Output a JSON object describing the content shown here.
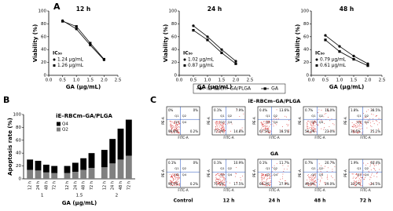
{
  "panel_labels": [
    "A",
    "B",
    "C"
  ],
  "chart_data": [
    {
      "type": "line",
      "title": "12 h",
      "xlabel": "GA (μg/mL)",
      "ylabel": "Viability (%)",
      "x": [
        0.5,
        1.0,
        1.5,
        2.0
      ],
      "xlim": [
        0,
        2.5
      ],
      "xticks": [
        {
          "value": 0,
          "label": "0.0"
        },
        {
          "value": 0.5,
          "label": "0.5"
        },
        {
          "value": 1,
          "label": "1.0"
        },
        {
          "value": 1.5,
          "label": "1.5"
        },
        {
          "value": 2,
          "label": "2.0"
        },
        {
          "value": 2.5,
          "label": "2.5"
        }
      ],
      "ylim": [
        0,
        100
      ],
      "yticks": [
        0,
        20,
        40,
        60,
        80,
        100
      ],
      "series": [
        {
          "name": "iE–RBCm–GA/PLGA",
          "color": "#000000",
          "marker": "circle",
          "values": [
            85,
            72,
            47,
            24
          ]
        },
        {
          "name": "GA",
          "color": "#000000",
          "marker": "square",
          "values": [
            84,
            76,
            50,
            25
          ]
        }
      ],
      "ic50_title": "IC₅₀",
      "ic50": [
        "1.24 μg/mL",
        "1.26 μg/mL"
      ]
    },
    {
      "type": "line",
      "title": "24 h",
      "xlabel": "GA (μg/mL)",
      "ylabel": "Viability (%)",
      "x": [
        0.5,
        1.0,
        1.5,
        2.0
      ],
      "xlim": [
        0,
        2.5
      ],
      "xticks": [
        {
          "value": 0,
          "label": "0.0"
        },
        {
          "value": 0.5,
          "label": "0.5"
        },
        {
          "value": 1,
          "label": "1.0"
        },
        {
          "value": 1.5,
          "label": "1.5"
        },
        {
          "value": 2,
          "label": "2.0"
        },
        {
          "value": 2.5,
          "label": "2.5"
        }
      ],
      "ylim": [
        0,
        100
      ],
      "yticks": [
        0,
        20,
        40,
        60,
        80,
        100
      ],
      "series": [
        {
          "name": "iE–RBCm–GA/PLGA",
          "color": "#000000",
          "marker": "circle",
          "values": [
            77,
            60,
            40,
            22
          ]
        },
        {
          "name": "GA",
          "color": "#000000",
          "marker": "square",
          "values": [
            70,
            55,
            35,
            18
          ]
        }
      ],
      "ic50_title": "IC₅₀",
      "ic50": [
        "1.02 μg/mL",
        "0.87 μg/mL"
      ]
    },
    {
      "type": "line",
      "title": "48 h",
      "xlabel": "GA (μg/mL)",
      "ylabel": "Viability (%)",
      "x": [
        0.5,
        1.0,
        1.5,
        2.0
      ],
      "xlim": [
        0,
        2.5
      ],
      "xticks": [
        {
          "value": 0,
          "label": "0.0"
        },
        {
          "value": 0.5,
          "label": "0.5"
        },
        {
          "value": 1,
          "label": "1.0"
        },
        {
          "value": 1.5,
          "label": "1.5"
        },
        {
          "value": 2,
          "label": "2.0"
        },
        {
          "value": 2.5,
          "label": "2.5"
        }
      ],
      "ylim": [
        0,
        100
      ],
      "yticks": [
        0,
        20,
        40,
        60,
        80,
        100
      ],
      "series": [
        {
          "name": "iE–RBCm–GA/PLGA",
          "color": "#000000",
          "marker": "circle",
          "values": [
            62,
            45,
            30,
            18
          ]
        },
        {
          "name": "GA",
          "color": "#000000",
          "marker": "square",
          "values": [
            55,
            37,
            25,
            15
          ]
        }
      ],
      "ic50_title": "IC₅₀",
      "ic50": [
        "0.79 μg/mL",
        "0.61 μg/mL"
      ]
    },
    {
      "type": "bar",
      "stacked": true,
      "title": "iE–RBCm–GA/PLGA",
      "xlabel": "GA (μg/mL)",
      "ylabel": "Apoptosis rate (%)",
      "categories": [
        "12 h",
        "24 h",
        "48 h",
        "72 h",
        "12 h",
        "24 h",
        "48 h",
        "72 h",
        "12 h",
        "24 h",
        "48 h",
        "72 h"
      ],
      "group_labels": [
        "1",
        "1.5",
        "2"
      ],
      "ylim": [
        0,
        100
      ],
      "yticks": [
        0,
        20,
        40,
        60,
        80,
        100
      ],
      "series": [
        {
          "name": "Q4",
          "color": "#000000",
          "values": [
            16,
            15,
            12,
            11,
            11,
            14,
            18,
            23,
            27,
            38,
            48,
            56
          ]
        },
        {
          "name": "Q2",
          "color": "#808080",
          "values": [
            14,
            13,
            10,
            9,
            9,
            11,
            14,
            17,
            18,
            24,
            30,
            36
          ]
        }
      ]
    }
  ],
  "flow_cytometry": {
    "columns": [
      "Control",
      "12 h",
      "24 h",
      "48 h",
      "72 h"
    ],
    "quadrant_names": [
      "Q1",
      "Q2",
      "Q3",
      "Q4"
    ],
    "x_axis": "FITC-A",
    "y_axis": "PE-A",
    "rows": [
      {
        "label": "iE–RBCm–GA/PLGA",
        "plots": [
          [
            "0%",
            "0%",
            "99.8%",
            "0.2%"
          ],
          [
            "0.1%",
            "7.9%",
            "77.2%",
            "14.8%"
          ],
          [
            "0.4%",
            "13.6%",
            "67.5%",
            "18.5%"
          ],
          [
            "0.7%",
            "18.0%",
            "58.3%",
            "23.0%"
          ],
          [
            "1.8%",
            "38.5%",
            "34.6%",
            "25.1%"
          ]
        ]
      },
      {
        "label": "GA",
        "plots": [
          [
            "0.1%",
            "0%",
            "99.7%",
            "0.2%"
          ],
          [
            "0.1%",
            "10.9%",
            "71.5%",
            "17.5%"
          ],
          [
            "0.1%",
            "11.7%",
            "60.3%",
            "27.9%"
          ],
          [
            "0.7%",
            "20.7%",
            "49.6%",
            "29.0%"
          ],
          [
            "1.9%",
            "40.4%",
            "33.2%",
            "24.5%"
          ]
        ]
      }
    ]
  }
}
